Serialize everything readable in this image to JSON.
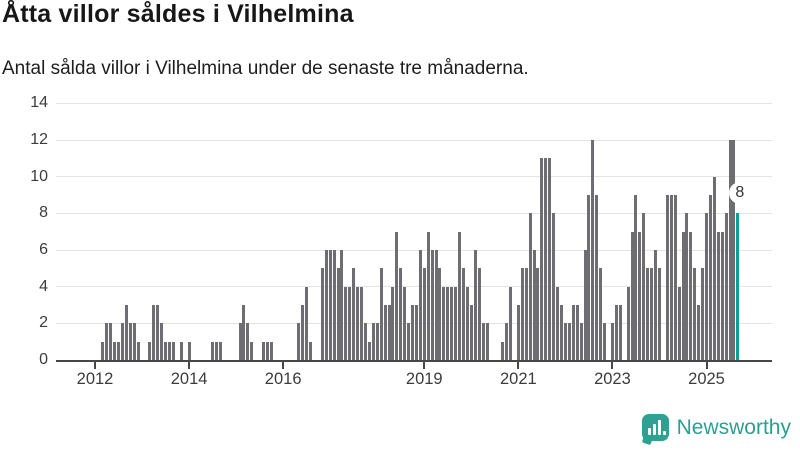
{
  "title": "Åtta villor såldes i Vilhelmina",
  "subtitle": "Antal sålda villor i Vilhelmina under de senaste tre månaderna.",
  "branding": {
    "logo_text": "Newsworthy",
    "logo_color": "#2d9f92"
  },
  "chart_data": {
    "type": "bar",
    "title": "Åtta villor såldes i Vilhelmina",
    "subtitle": "Antal sålda villor i Vilhelmina under de senaste tre månaderna.",
    "frequency": "monthly",
    "x_start": "2012-01",
    "x_end": "2025-09",
    "ylim": [
      0,
      14
    ],
    "y_ticks": [
      0,
      2,
      4,
      6,
      8,
      10,
      12,
      14
    ],
    "grid": true,
    "legend": false,
    "bar_color": "#6d6d72",
    "x_ticks": [
      {
        "label": "2012",
        "month_index": 0
      },
      {
        "label": "2014",
        "month_index": 24
      },
      {
        "label": "2016",
        "month_index": 48
      },
      {
        "label": "2019",
        "month_index": 84
      },
      {
        "label": "2021",
        "month_index": 108
      },
      {
        "label": "2023",
        "month_index": 132
      },
      {
        "label": "2025",
        "month_index": 156
      }
    ],
    "values": [
      0,
      0,
      1,
      2,
      2,
      1,
      1,
      2,
      3,
      2,
      2,
      1,
      0,
      0,
      1,
      3,
      3,
      2,
      1,
      1,
      1,
      0,
      1,
      0,
      1,
      0,
      0,
      0,
      0,
      0,
      1,
      1,
      1,
      0,
      0,
      0,
      0,
      2,
      3,
      2,
      1,
      0,
      0,
      1,
      1,
      1,
      0,
      0,
      0,
      0,
      0,
      0,
      2,
      3,
      4,
      1,
      0,
      0,
      5,
      6,
      6,
      6,
      5,
      6,
      4,
      4,
      5,
      4,
      4,
      2,
      1,
      2,
      2,
      5,
      3,
      3,
      4,
      7,
      5,
      4,
      2,
      3,
      3,
      6,
      5,
      7,
      6,
      6,
      5,
      4,
      4,
      4,
      4,
      7,
      5,
      4,
      3,
      6,
      5,
      2,
      2,
      0,
      0,
      0,
      1,
      2,
      4,
      0,
      3,
      5,
      5,
      8,
      6,
      5,
      11,
      11,
      11,
      8,
      4,
      3,
      2,
      2,
      3,
      3,
      2,
      6,
      9,
      12,
      9,
      5,
      2,
      0,
      2,
      3,
      3,
      0,
      4,
      7,
      9,
      7,
      8,
      5,
      5,
      6,
      5,
      0,
      9,
      9,
      9,
      4,
      7,
      8,
      7,
      5,
      3,
      5,
      8,
      9,
      10,
      7,
      7,
      8,
      12,
      12,
      8
    ],
    "highlight": {
      "index": 164,
      "value": 8,
      "label": "8",
      "color": "#119c99"
    }
  }
}
